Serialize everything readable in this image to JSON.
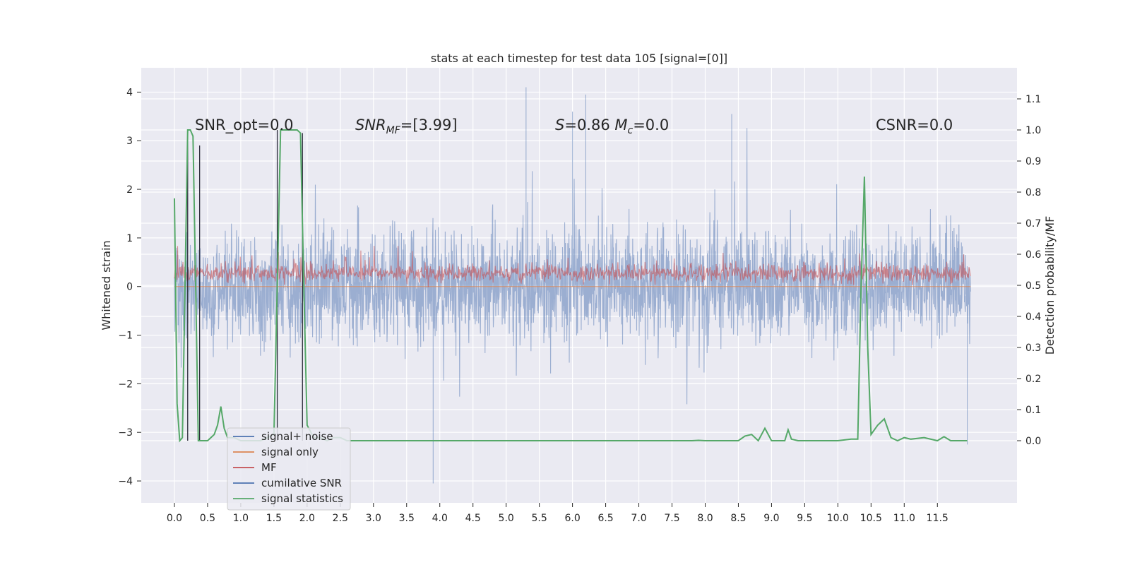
{
  "chart_data": {
    "type": "line",
    "title": "stats at each timestep for test data 105 [signal=[0]]",
    "xlabel": "",
    "ylabel": "Whitened strain",
    "y2label": "Detection probability/MF",
    "xlim": [
      -0.5,
      12.7
    ],
    "ylim": [
      -4.45,
      4.5
    ],
    "y2lim": [
      -0.2,
      1.2
    ],
    "xticks": [
      "0.0",
      "0.5",
      "1.0",
      "1.5",
      "2.0",
      "2.5",
      "3.0",
      "3.5",
      "4.0",
      "4.5",
      "5.0",
      "5.5",
      "6.0",
      "6.5",
      "7.0",
      "7.5",
      "8.0",
      "8.5",
      "9.0",
      "9.5",
      "10.0",
      "10.5",
      "11.0",
      "11.5"
    ],
    "yticks": [
      "−4",
      "−3",
      "−2",
      "−1",
      "0",
      "1",
      "2",
      "3",
      "4"
    ],
    "y2ticks": [
      "0.0",
      "0.1",
      "0.2",
      "0.3",
      "0.4",
      "0.5",
      "0.6",
      "0.7",
      "0.8",
      "0.9",
      "1.0",
      "1.1"
    ],
    "grid": true,
    "legend_placement": "lower-left",
    "annotations": [
      {
        "text": "SNR_opt=0.0",
        "x": 0.2
      },
      {
        "text": "SNRMF=[3.99]",
        "x": 2.6
      },
      {
        "text": "S=0.86  Mc=0.0",
        "x": 5.6
      },
      {
        "text": "CSNR=0.0",
        "x": 10.45
      }
    ],
    "series": [
      {
        "name": "signal+ noise",
        "axis": "left",
        "color": "#4c72b0",
        "alpha": 0.5,
        "x_range": [
          0,
          12
        ],
        "typical_range": [
          -1.5,
          1.5
        ],
        "extremes": [
          -4.05,
          4.1
        ]
      },
      {
        "name": "signal only",
        "axis": "left",
        "color": "#dd8452",
        "values_constant": 0
      },
      {
        "name": "MF",
        "axis": "left",
        "color": "#c44e52",
        "alpha": 0.6,
        "x_range": [
          0,
          12
        ],
        "typical_range": [
          0.0,
          0.55
        ],
        "extremes": [
          -0.1,
          1.0
        ]
      },
      {
        "name": "cumilative SNR",
        "axis": "right",
        "color": "#4c72b0"
      },
      {
        "name": "signal statistics",
        "axis": "right",
        "color": "#55a868",
        "x": [
          0.0,
          0.04,
          0.08,
          0.12,
          0.16,
          0.2,
          0.24,
          0.28,
          0.32,
          0.36,
          0.4,
          0.45,
          0.5,
          0.55,
          0.6,
          0.65,
          0.7,
          0.75,
          0.8,
          0.9,
          1.0,
          1.1,
          1.2,
          1.3,
          1.4,
          1.5,
          1.55,
          1.6,
          1.65,
          1.7,
          1.8,
          1.85,
          1.9,
          1.95,
          2.0,
          2.1,
          2.2,
          2.3,
          2.4,
          2.5,
          2.6,
          3.0,
          4.0,
          5.0,
          6.0,
          7.0,
          7.8,
          7.9,
          8.0,
          8.5,
          8.6,
          8.7,
          8.8,
          8.9,
          9.0,
          9.2,
          9.25,
          9.3,
          9.4,
          10.0,
          10.2,
          10.3,
          10.35,
          10.4,
          10.45,
          10.5,
          10.6,
          10.7,
          10.8,
          10.9,
          11.0,
          11.1,
          11.3,
          11.5,
          11.6,
          11.7,
          11.95
        ],
        "y": [
          0.78,
          0.12,
          0.0,
          0.01,
          0.5,
          1.0,
          1.0,
          0.98,
          0.5,
          0.0,
          0.0,
          0.0,
          0.0,
          0.01,
          0.02,
          0.05,
          0.11,
          0.04,
          0.01,
          0.01,
          0.0,
          0.0,
          0.0,
          0.0,
          0.01,
          0.02,
          0.5,
          1.0,
          1.0,
          1.0,
          1.0,
          1.0,
          0.99,
          0.5,
          0.05,
          0.01,
          0.01,
          0.0,
          0.01,
          0.01,
          0.0,
          0.0,
          0.0,
          0.0,
          0.0,
          0.0,
          0.0,
          0.001,
          0.0,
          0.0,
          0.015,
          0.02,
          0.0,
          0.04,
          0.0,
          0.0,
          0.035,
          0.005,
          0.0,
          0.0,
          0.005,
          0.005,
          0.5,
          0.85,
          0.3,
          0.02,
          0.05,
          0.07,
          0.01,
          0.0,
          0.01,
          0.005,
          0.01,
          0.0,
          0.013,
          0.0,
          0.0
        ]
      }
    ]
  }
}
